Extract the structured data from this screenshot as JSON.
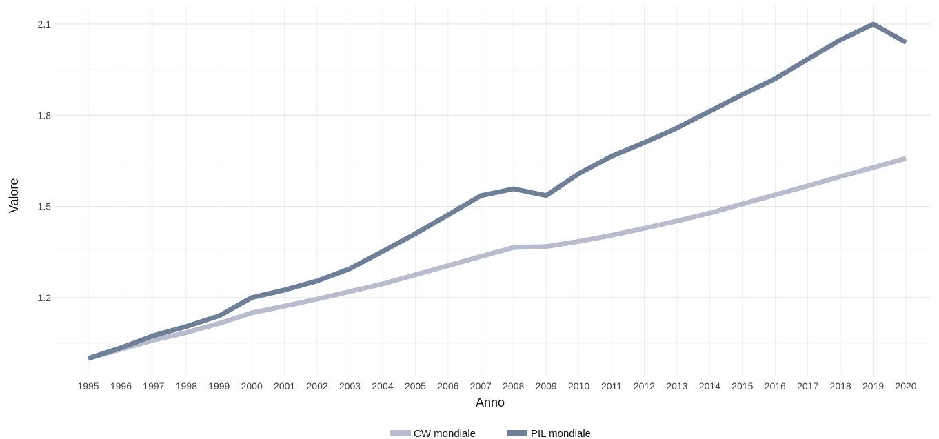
{
  "chart_data": {
    "type": "line",
    "xlabel": "Anno",
    "ylabel": "Valore",
    "categories": [
      "1995",
      "1996",
      "1997",
      "1998",
      "1999",
      "2000",
      "2001",
      "2002",
      "2003",
      "2004",
      "2005",
      "2006",
      "2007",
      "2008",
      "2009",
      "2010",
      "2011",
      "2012",
      "2013",
      "2014",
      "2015",
      "2016",
      "2017",
      "2018",
      "2019",
      "2020"
    ],
    "ylim": [
      0.96,
      2.2
    ],
    "yticks": [
      "1.2",
      "1.5",
      "1.8",
      "2.1"
    ],
    "grid": true,
    "legend_position": "bottom",
    "series": [
      {
        "name": "CW mondiale",
        "color": "#b8bccc",
        "values": [
          1.0,
          1.03,
          1.06,
          1.085,
          1.115,
          1.15,
          1.172,
          1.195,
          1.22,
          1.245,
          1.275,
          1.305,
          1.335,
          1.365,
          1.368,
          1.385,
          1.405,
          1.428,
          1.452,
          1.478,
          1.508,
          1.538,
          1.568,
          1.598,
          1.628,
          1.658
        ]
      },
      {
        "name": "PIL mondiale",
        "color": "#6e7f98",
        "values": [
          1.0,
          1.035,
          1.075,
          1.105,
          1.14,
          1.2,
          1.225,
          1.255,
          1.295,
          1.352,
          1.41,
          1.472,
          1.535,
          1.558,
          1.536,
          1.608,
          1.665,
          1.71,
          1.758,
          1.813,
          1.868,
          1.92,
          1.985,
          2.048,
          2.1,
          2.04
        ]
      }
    ]
  }
}
